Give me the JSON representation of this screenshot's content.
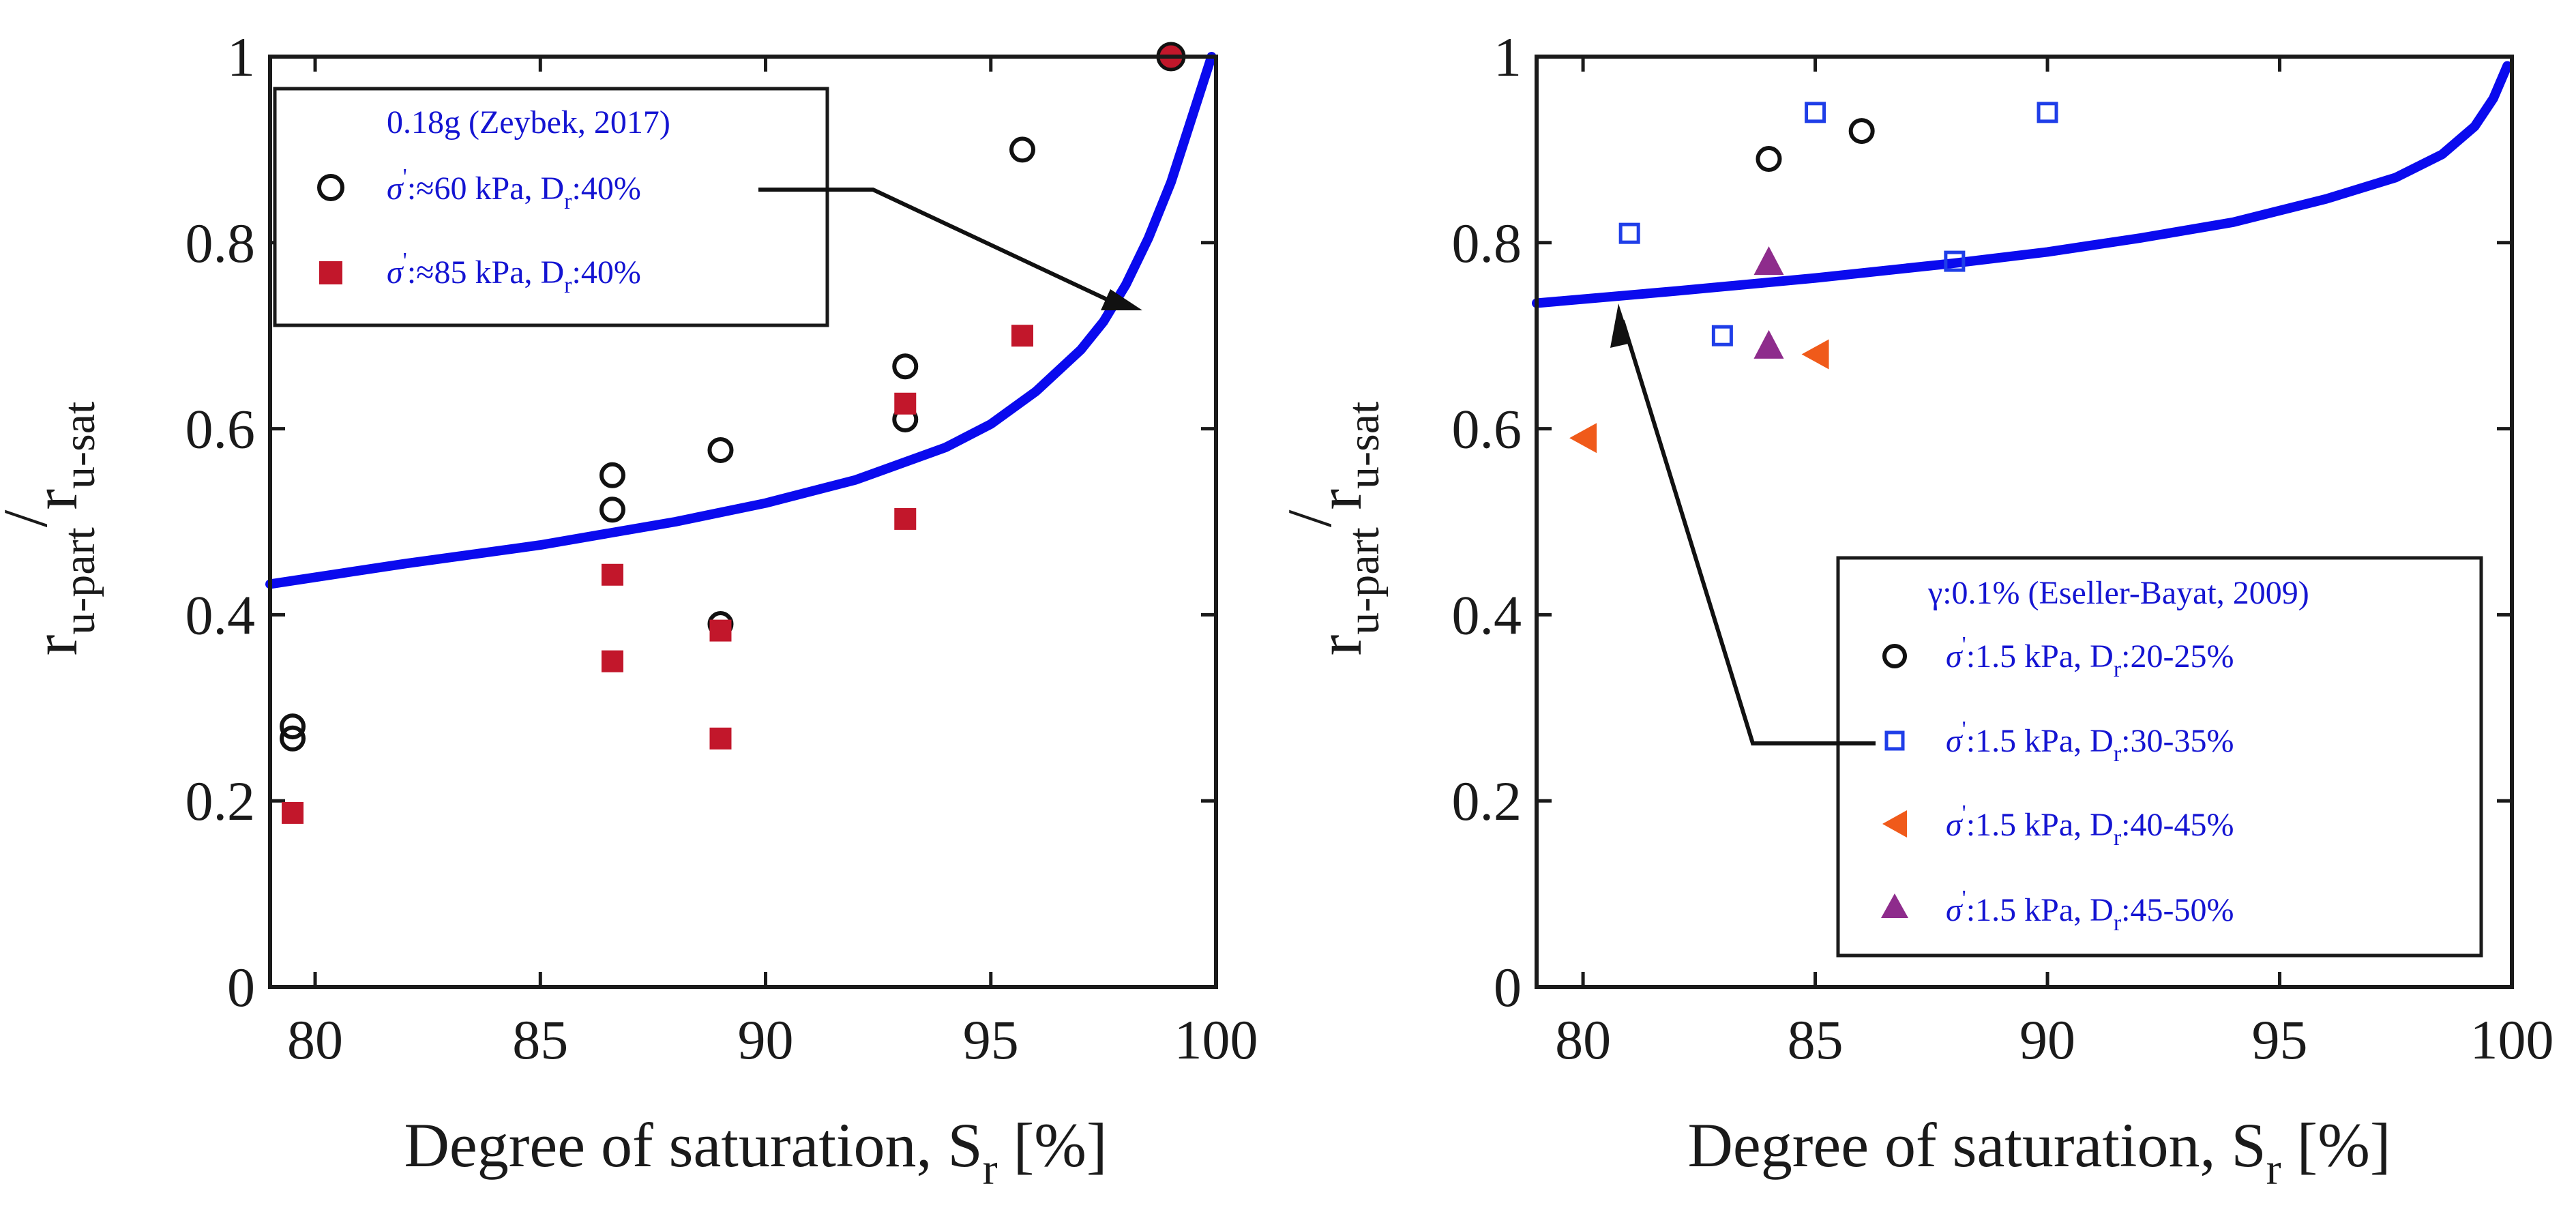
{
  "chart_data": [
    {
      "type": "scatter",
      "xlabel": {
        "main": "Degree of saturation, S",
        "sub": "r",
        "unit": " [%]"
      },
      "ylabel": {
        "r1": "r",
        "sub1": "u-part",
        "slash": "/",
        "r2": "r",
        "sub2": "u-sat"
      },
      "xlim": [
        79,
        100
      ],
      "ylim": [
        0,
        1
      ],
      "x_ticks": [
        80,
        85,
        90,
        95,
        100
      ],
      "y_ticks": [
        0,
        0.2,
        0.4,
        0.6,
        0.8,
        1
      ],
      "x_tick_labels": [
        "80",
        "85",
        "90",
        "95",
        "100"
      ],
      "y_tick_labels": [
        "0",
        "0.2",
        "0.4",
        "0.6",
        "0.8",
        "1"
      ],
      "curve": {
        "name": "model curve",
        "color": "#0a0aee",
        "points": [
          [
            79,
            0.433
          ],
          [
            82,
            0.455
          ],
          [
            85,
            0.475
          ],
          [
            88,
            0.5
          ],
          [
            90,
            0.52
          ],
          [
            92,
            0.545
          ],
          [
            94,
            0.58
          ],
          [
            95,
            0.605
          ],
          [
            96,
            0.64
          ],
          [
            97,
            0.685
          ],
          [
            97.5,
            0.715
          ],
          [
            98,
            0.755
          ],
          [
            98.5,
            0.805
          ],
          [
            99,
            0.865
          ],
          [
            99.4,
            0.925
          ],
          [
            99.7,
            0.97
          ],
          [
            99.9,
            1.0
          ]
        ]
      },
      "legend": {
        "title": "0.18g (Zeybek, 2017)",
        "items": [
          {
            "sym": "σ",
            "prime": "'",
            "mid": ":≈60 kPa, D",
            "sub": "r",
            "tail": ":40%"
          },
          {
            "sym": "σ",
            "prime": "'",
            "mid": ":≈85 kPa, D",
            "sub": "r",
            "tail": ":40%"
          }
        ]
      },
      "series": [
        {
          "name": "σ':≈60 kPa, Dr:40%",
          "marker": "circle-open",
          "color": "#111111",
          "points": [
            [
              79.5,
              0.28
            ],
            [
              79.5,
              0.267
            ],
            [
              86.6,
              0.55
            ],
            [
              86.6,
              0.513
            ],
            [
              89,
              0.577
            ],
            [
              89,
              0.39
            ],
            [
              93.1,
              0.667
            ],
            [
              93.1,
              0.61
            ],
            [
              95.7,
              0.9
            ]
          ]
        },
        {
          "name": "σ':≈85 kPa, Dr:40%",
          "marker": "square-filled",
          "color": "#c2172b",
          "points": [
            [
              79.5,
              0.187
            ],
            [
              86.6,
              0.443
            ],
            [
              86.6,
              0.35
            ],
            [
              89,
              0.383
            ],
            [
              89,
              0.267
            ],
            [
              93.1,
              0.627
            ],
            [
              93.1,
              0.503
            ],
            [
              95.7,
              0.7
            ]
          ]
        },
        {
          "name": "end point",
          "marker": "circle-filled-red",
          "color": "#c2172b",
          "points": [
            [
              99,
              1.0
            ]
          ]
        }
      ]
    },
    {
      "type": "scatter",
      "xlabel": {
        "main": "Degree of saturation, S",
        "sub": "r",
        "unit": " [%]"
      },
      "ylabel": {
        "r1": "r",
        "sub1": "u-part",
        "slash": "/",
        "r2": "r",
        "sub2": "u-sat"
      },
      "xlim": [
        79,
        100
      ],
      "ylim": [
        0,
        1
      ],
      "x_ticks": [
        80,
        85,
        90,
        95,
        100
      ],
      "y_ticks": [
        0,
        0.2,
        0.4,
        0.6,
        0.8,
        1
      ],
      "x_tick_labels": [
        "80",
        "85",
        "90",
        "95",
        "100"
      ],
      "y_tick_labels": [
        "0",
        "0.2",
        "0.4",
        "0.6",
        "0.8",
        "1"
      ],
      "curve": {
        "name": "model curve",
        "color": "#0a0aee",
        "points": [
          [
            79,
            0.735
          ],
          [
            82,
            0.748
          ],
          [
            85,
            0.762
          ],
          [
            88,
            0.778
          ],
          [
            90,
            0.79
          ],
          [
            92,
            0.805
          ],
          [
            94,
            0.822
          ],
          [
            96,
            0.847
          ],
          [
            97.5,
            0.87
          ],
          [
            98.5,
            0.895
          ],
          [
            99.2,
            0.925
          ],
          [
            99.6,
            0.955
          ],
          [
            99.9,
            0.99
          ]
        ]
      },
      "legend": {
        "title": "γ:0.1% (Eseller-Bayat, 2009)",
        "items": [
          {
            "sym": "σ",
            "prime": "'",
            "mid": ":1.5 kPa, D",
            "sub": "r",
            "tail": ":20-25%"
          },
          {
            "sym": "σ",
            "prime": "'",
            "mid": ":1.5 kPa, D",
            "sub": "r",
            "tail": ":30-35%"
          },
          {
            "sym": "σ",
            "prime": "'",
            "mid": ":1.5 kPa, D",
            "sub": "r",
            "tail": ":40-45%"
          },
          {
            "sym": "σ",
            "prime": "'",
            "mid": ":1.5 kPa, D",
            "sub": "r",
            "tail": ":45-50%"
          }
        ]
      },
      "series": [
        {
          "name": "σ':1.5 kPa, Dr:20-25%",
          "marker": "circle-open",
          "color": "#111111",
          "points": [
            [
              84,
              0.89
            ],
            [
              86,
              0.92
            ]
          ]
        },
        {
          "name": "σ':1.5 kPa, Dr:30-35%",
          "marker": "square-open",
          "color": "#1f3ee8",
          "points": [
            [
              81,
              0.81
            ],
            [
              83,
              0.7
            ],
            [
              85,
              0.94
            ],
            [
              88,
              0.78
            ],
            [
              90,
              0.94
            ]
          ]
        },
        {
          "name": "σ':1.5 kPa, Dr:40-45%",
          "marker": "triangle-left",
          "color": "#f05a1a",
          "points": [
            [
              80,
              0.59
            ],
            [
              85,
              0.68
            ]
          ]
        },
        {
          "name": "σ':1.5 kPa, Dr:45-50%",
          "marker": "triangle-up",
          "color": "#8e2c8c",
          "points": [
            [
              84,
              0.78
            ],
            [
              84,
              0.69
            ]
          ]
        }
      ]
    }
  ]
}
